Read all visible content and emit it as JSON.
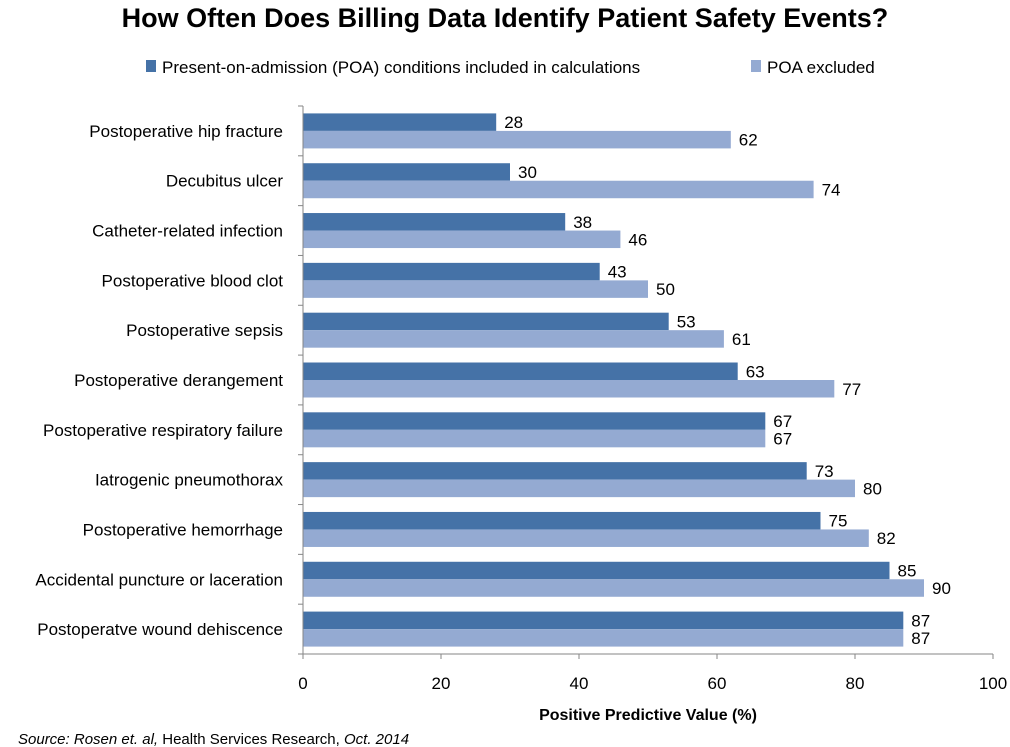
{
  "chart_data": {
    "type": "bar",
    "orientation": "horizontal",
    "title": "How Often Does Billing Data Identify Patient Safety Events?",
    "xlabel": "Positive Predictive Value (%)",
    "ylabel": "",
    "xlim": [
      0,
      100
    ],
    "xticks": [
      0,
      20,
      40,
      60,
      80,
      100
    ],
    "grid": false,
    "legend_position": "top",
    "categories": [
      "Postoperative hip fracture",
      "Decubitus ulcer",
      "Catheter-related infection",
      "Postoperative blood clot",
      "Postoperative sepsis",
      "Postoperative derangement",
      "Postoperative respiratory failure",
      "Iatrogenic pneumothorax",
      "Postoperative hemorrhage",
      "Accidental puncture or laceration",
      "Postoperatve wound dehiscence"
    ],
    "series": [
      {
        "name": "Present-on-admission (POA) conditions included in calculations",
        "color": "#4572A7",
        "values": [
          28,
          30,
          38,
          43,
          53,
          63,
          67,
          73,
          75,
          85,
          87
        ]
      },
      {
        "name": "POA excluded",
        "color": "#94AAD2",
        "values": [
          62,
          74,
          46,
          50,
          61,
          77,
          67,
          80,
          82,
          90,
          87
        ]
      }
    ]
  },
  "source": {
    "prefix": "Source: Rosen et. al,",
    "journal": " Health Services Research,",
    "date": " Oct. 2014"
  }
}
